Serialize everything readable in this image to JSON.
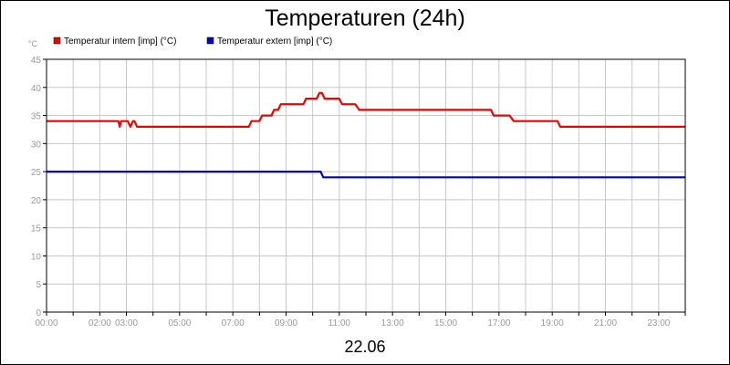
{
  "chart_data": {
    "type": "line",
    "title": "Temperaturen (24h)",
    "xlabel": "22.06",
    "ylabel": "°C",
    "xlim": [
      0,
      24
    ],
    "ylim": [
      0,
      45
    ],
    "grid": true,
    "legend_position": "top-left",
    "x_ticks": [
      {
        "x": 0,
        "label": "00:00"
      },
      {
        "x": 2,
        "label": "02:00"
      },
      {
        "x": 3,
        "label": "03:00"
      },
      {
        "x": 5,
        "label": "05:00"
      },
      {
        "x": 7,
        "label": "07:00"
      },
      {
        "x": 9,
        "label": "09:00"
      },
      {
        "x": 11,
        "label": "11:00"
      },
      {
        "x": 13,
        "label": "13:00"
      },
      {
        "x": 15,
        "label": "15:00"
      },
      {
        "x": 17,
        "label": "17:00"
      },
      {
        "x": 19,
        "label": "19:00"
      },
      {
        "x": 21,
        "label": "21:00"
      },
      {
        "x": 23,
        "label": "23:00"
      }
    ],
    "x_gridlines": [
      0,
      1,
      2,
      3,
      4,
      5,
      6,
      7,
      8,
      9,
      10,
      11,
      12,
      13,
      14,
      15,
      16,
      17,
      18,
      19,
      20,
      21,
      22,
      23,
      24
    ],
    "y_ticks": [
      0,
      5,
      10,
      15,
      20,
      25,
      30,
      35,
      40,
      45
    ],
    "series": [
      {
        "name": "Temperatur intern [imp] (°C)",
        "color": "#ee0000",
        "points": [
          [
            0.0,
            34
          ],
          [
            2.7,
            34
          ],
          [
            2.75,
            33
          ],
          [
            2.8,
            34
          ],
          [
            3.05,
            34
          ],
          [
            3.15,
            33
          ],
          [
            3.25,
            34
          ],
          [
            3.3,
            34
          ],
          [
            3.4,
            33
          ],
          [
            7.6,
            33
          ],
          [
            7.7,
            34
          ],
          [
            8.0,
            34
          ],
          [
            8.1,
            35
          ],
          [
            8.45,
            35
          ],
          [
            8.55,
            36
          ],
          [
            8.7,
            36
          ],
          [
            8.8,
            37
          ],
          [
            9.65,
            37
          ],
          [
            9.75,
            38
          ],
          [
            10.15,
            38
          ],
          [
            10.25,
            39
          ],
          [
            10.35,
            39
          ],
          [
            10.45,
            38
          ],
          [
            11.0,
            38
          ],
          [
            11.1,
            37
          ],
          [
            11.6,
            37
          ],
          [
            11.75,
            36
          ],
          [
            16.7,
            36
          ],
          [
            16.8,
            35
          ],
          [
            17.4,
            35
          ],
          [
            17.55,
            34
          ],
          [
            19.2,
            34
          ],
          [
            19.3,
            33
          ],
          [
            24.0,
            33
          ]
        ]
      },
      {
        "name": "Temperatur extern [imp] (°C)",
        "color": "#0000cc",
        "points": [
          [
            0.0,
            25
          ],
          [
            10.3,
            25
          ],
          [
            10.4,
            24
          ],
          [
            24.0,
            24
          ]
        ]
      }
    ]
  },
  "colors": {
    "grid": "#c8c8c8",
    "axis": "#000000",
    "tick_text": "#9a9a9a"
  }
}
